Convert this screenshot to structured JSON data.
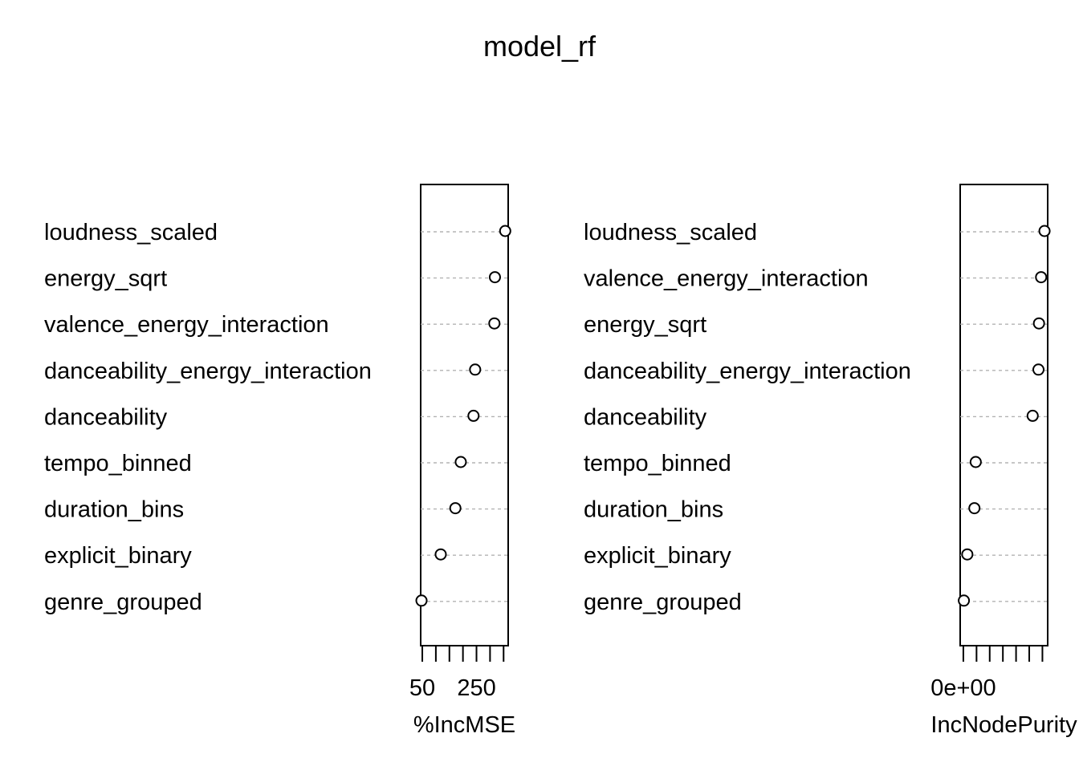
{
  "chart_data": {
    "type": "scatter",
    "title": "model_rf",
    "panels": [
      {
        "xlabel": "%IncMSE",
        "xlim": [
          44,
          367
        ],
        "ticks": [
          50,
          100,
          150,
          200,
          250,
          300,
          350
        ],
        "tick_labels": [
          "50",
          "",
          "",
          "",
          "250",
          "",
          ""
        ],
        "categories": [
          "loudness_scaled",
          "energy_sqrt",
          "valence_energy_interaction",
          "danceability_energy_interaction",
          "danceability",
          "tempo_binned",
          "duration_bins",
          "explicit_binary",
          "genre_grouped"
        ],
        "values": [
          356,
          318,
          316,
          245,
          239,
          192,
          172,
          118,
          47
        ]
      },
      {
        "xlabel": "IncNodePurity",
        "xlim": [
          -1200000.0,
          32000000.0
        ],
        "ticks": [
          0,
          5000000,
          10000000,
          15000000,
          20000000,
          25000000,
          30000000
        ],
        "tick_labels": [
          "0e+00",
          "",
          "",
          "",
          "",
          "",
          ""
        ],
        "categories": [
          "loudness_scaled",
          "valence_energy_interaction",
          "energy_sqrt",
          "danceability_energy_interaction",
          "danceability",
          "tempo_binned",
          "duration_bins",
          "explicit_binary",
          "genre_grouped"
        ],
        "values": [
          30800000,
          29500000,
          28700000,
          28500000,
          26300000,
          4700000,
          4200000,
          1500000,
          200000
        ]
      }
    ]
  }
}
